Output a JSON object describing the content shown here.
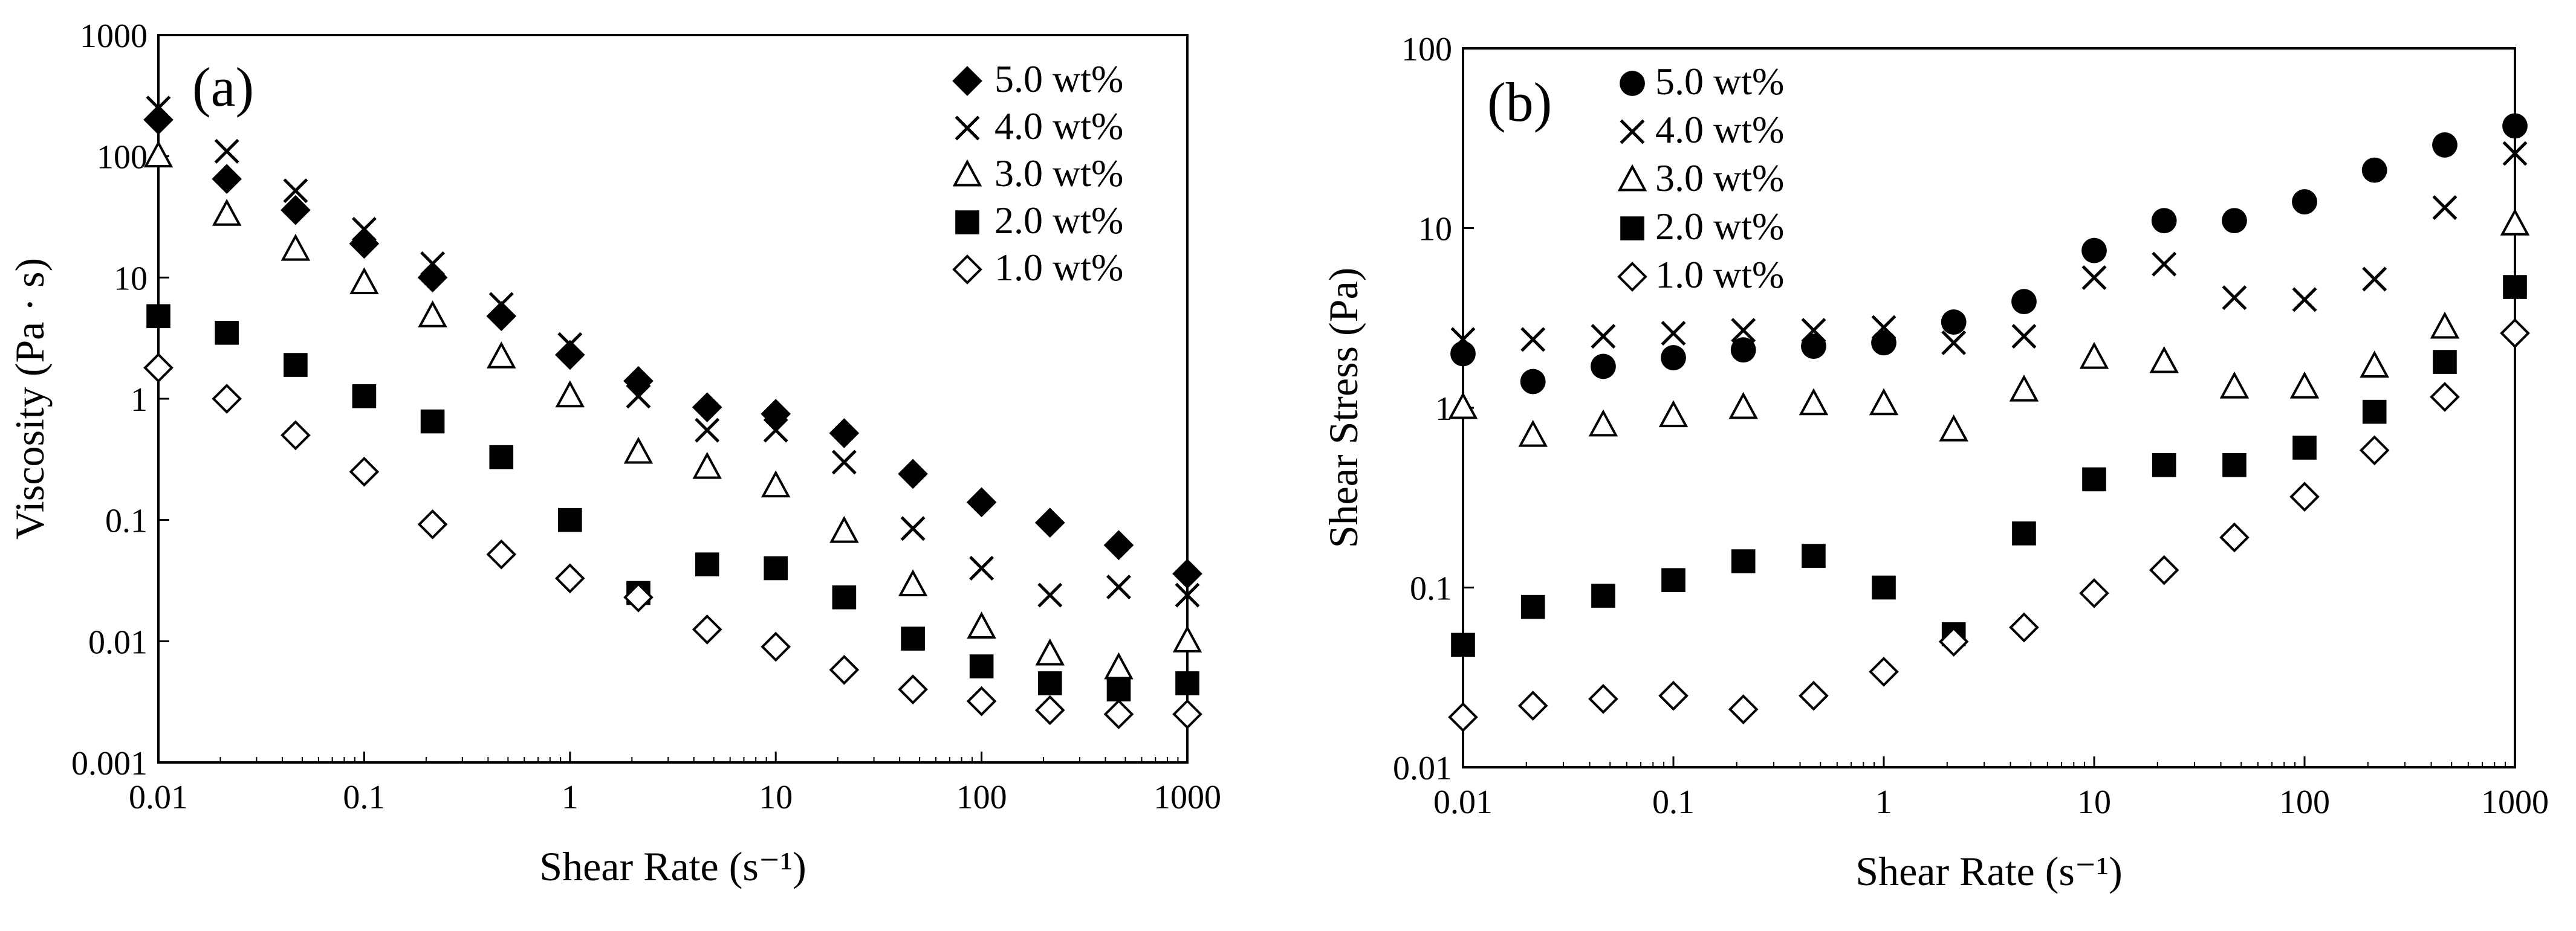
{
  "chart_data": [
    {
      "type": "scatter",
      "panel_label": "(a)",
      "xlabel": "Shear Rate (s⁻¹)",
      "ylabel": "Viscosity (Pa · s)",
      "xscale": "log",
      "yscale": "log",
      "xlim": [
        0.01,
        1000
      ],
      "ylim": [
        0.001,
        1000
      ],
      "x_ticks": [
        "0.01",
        "0.1",
        "1",
        "10",
        "100",
        "1000"
      ],
      "y_ticks": [
        "0.001",
        "0.01",
        "0.1",
        "1",
        "10",
        "100",
        "1000"
      ],
      "grid": false,
      "legend_position": "top-right",
      "x": [
        0.01,
        0.0215,
        0.0464,
        0.1,
        0.215,
        0.464,
        1,
        2.15,
        4.64,
        10,
        21.5,
        46.4,
        100,
        215,
        464,
        1000
      ],
      "series": [
        {
          "name": "5.0 wt%",
          "marker": "diamond-filled",
          "values": [
            200,
            65,
            36,
            19,
            10,
            4.8,
            2.3,
            1.4,
            0.85,
            0.75,
            0.52,
            0.24,
            0.14,
            0.095,
            0.062,
            0.036
          ]
        },
        {
          "name": "4.0 wt%",
          "marker": "x",
          "values": [
            250,
            110,
            52,
            25,
            13,
            6.0,
            2.8,
            1.05,
            0.55,
            0.55,
            0.3,
            0.085,
            0.04,
            0.024,
            0.028,
            0.024
          ]
        },
        {
          "name": "3.0 wt%",
          "marker": "triangle-open",
          "values": [
            100,
            33,
            17,
            9.0,
            4.8,
            2.2,
            1.05,
            0.36,
            0.27,
            0.19,
            0.08,
            0.029,
            0.013,
            0.0078,
            0.006,
            0.01
          ]
        },
        {
          "name": "2.0 wt%",
          "marker": "square-filled",
          "values": [
            4.8,
            3.5,
            1.9,
            1.05,
            0.65,
            0.33,
            0.1,
            0.025,
            0.043,
            0.04,
            0.023,
            0.0105,
            0.0062,
            0.0045,
            0.004,
            0.0045
          ]
        },
        {
          "name": "1.0 wt%",
          "marker": "diamond-open",
          "values": [
            1.8,
            1.0,
            0.5,
            0.25,
            0.092,
            0.052,
            0.033,
            0.023,
            0.0125,
            0.009,
            0.0058,
            0.004,
            0.0032,
            0.0027,
            0.0025,
            0.0025
          ]
        }
      ]
    },
    {
      "type": "scatter",
      "panel_label": "(b)",
      "xlabel": "Shear Rate (s⁻¹)",
      "ylabel": "Shear Stress (Pa)",
      "xscale": "log",
      "yscale": "log",
      "xlim": [
        0.01,
        1000
      ],
      "ylim": [
        0.01,
        100
      ],
      "x_ticks": [
        "0.01",
        "0.1",
        "1",
        "10",
        "100",
        "1000"
      ],
      "y_ticks": [
        "0.01",
        "0.1",
        "1",
        "10",
        "100"
      ],
      "grid": false,
      "legend_position": "top-left",
      "x": [
        0.01,
        0.0215,
        0.0464,
        0.1,
        0.215,
        0.464,
        1,
        2.15,
        4.64,
        10,
        21.5,
        46.4,
        100,
        215,
        464,
        1000
      ],
      "series": [
        {
          "name": "5.0 wt%",
          "marker": "circle-filled",
          "values": [
            2.0,
            1.4,
            1.7,
            1.9,
            2.1,
            2.2,
            2.3,
            3.0,
            3.9,
            7.5,
            11,
            11,
            14,
            21,
            29,
            37
          ]
        },
        {
          "name": "4.0 wt%",
          "marker": "x",
          "values": [
            2.4,
            2.4,
            2.5,
            2.6,
            2.7,
            2.7,
            2.8,
            2.3,
            2.5,
            5.3,
            6.3,
            4.1,
            4.0,
            5.2,
            13,
            26
          ]
        },
        {
          "name": "3.0 wt%",
          "marker": "triangle-open",
          "values": [
            1.0,
            0.7,
            0.8,
            0.9,
            1.0,
            1.05,
            1.05,
            0.75,
            1.25,
            1.9,
            1.8,
            1.3,
            1.3,
            1.7,
            2.8,
            10.5
          ]
        },
        {
          "name": "2.0 wt%",
          "marker": "square-filled",
          "values": [
            0.048,
            0.078,
            0.09,
            0.11,
            0.14,
            0.15,
            0.1,
            0.055,
            0.2,
            0.4,
            0.48,
            0.48,
            0.6,
            0.95,
            1.8,
            4.7
          ]
        },
        {
          "name": "1.0 wt%",
          "marker": "diamond-open",
          "values": [
            0.019,
            0.022,
            0.024,
            0.025,
            0.021,
            0.025,
            0.034,
            0.05,
            0.06,
            0.093,
            0.125,
            0.19,
            0.32,
            0.58,
            1.15,
            2.6
          ]
        }
      ]
    }
  ]
}
